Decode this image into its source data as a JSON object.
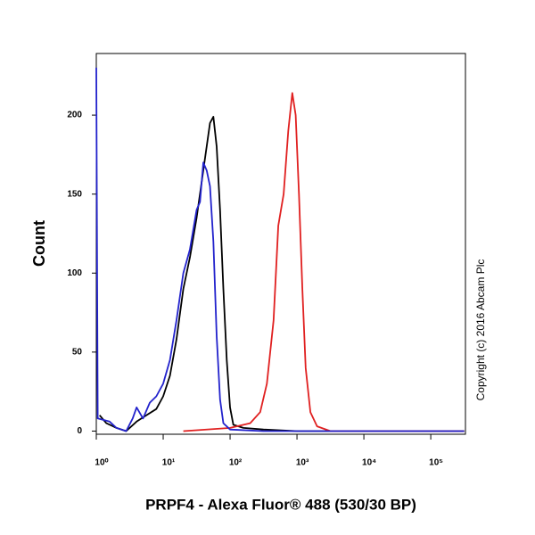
{
  "chart_data": {
    "type": "line",
    "x_label": "PRPF4 - Alexa Fluor® 488 (530/30 BP)",
    "y_label": "Count",
    "annotation": "Copyright (c) 2016 Abcam Plc",
    "log_x": true,
    "xlim": [
      1,
      330000
    ],
    "ylim": [
      -2,
      239
    ],
    "xticks": [
      {
        "value": 1,
        "label": "10⁰"
      },
      {
        "value": 10,
        "label": "10¹"
      },
      {
        "value": 100,
        "label": "10²"
      },
      {
        "value": 1000,
        "label": "10³"
      },
      {
        "value": 10000,
        "label": "10⁴"
      },
      {
        "value": 100000,
        "label": "10⁵"
      }
    ],
    "yticks": [
      0,
      50,
      100,
      150,
      200
    ],
    "series": [
      {
        "color": "#000000",
        "x": [
          1.12,
          1.41,
          2.0,
          2.8,
          4.0,
          5.6,
          7.9,
          10,
          12.6,
          15.8,
          20,
          25.1,
          31.6,
          39.8,
          50.1,
          56.2,
          63.1,
          70.8,
          79.4,
          89.1,
          100,
          112,
          158,
          316,
          1000,
          316000
        ],
        "values": [
          10,
          5,
          2,
          0,
          6,
          10,
          14,
          22,
          35,
          58,
          90,
          110,
          135,
          165,
          195,
          199,
          180,
          140,
          90,
          45,
          15,
          4,
          2,
          1,
          0,
          0
        ]
      },
      {
        "color": "#2222cc",
        "x": [
          1,
          1.05,
          1.58,
          2.0,
          2.8,
          3.5,
          4.0,
          5.0,
          6.3,
          7.9,
          10,
          12.6,
          15.8,
          20,
          25.1,
          31.6,
          35.5,
          39.8,
          44.7,
          50.1,
          56.2,
          63.1,
          70.8,
          79.4,
          100,
          316,
          316000
        ],
        "values": [
          230,
          8,
          6,
          2,
          0,
          8,
          15,
          8,
          18,
          22,
          30,
          45,
          70,
          100,
          115,
          140,
          145,
          170,
          165,
          155,
          120,
          60,
          20,
          5,
          1,
          0,
          0
        ]
      },
      {
        "color": "#e02020",
        "x": [
          20,
          100,
          200,
          282,
          355,
          447,
          525,
          631,
          741,
          851,
          955,
          1072,
          1202,
          1349,
          1585,
          1995,
          3162,
          316000
        ],
        "values": [
          0,
          2,
          5,
          12,
          30,
          70,
          130,
          150,
          190,
          214,
          200,
          150,
          90,
          40,
          12,
          3,
          0,
          0
        ]
      }
    ]
  }
}
